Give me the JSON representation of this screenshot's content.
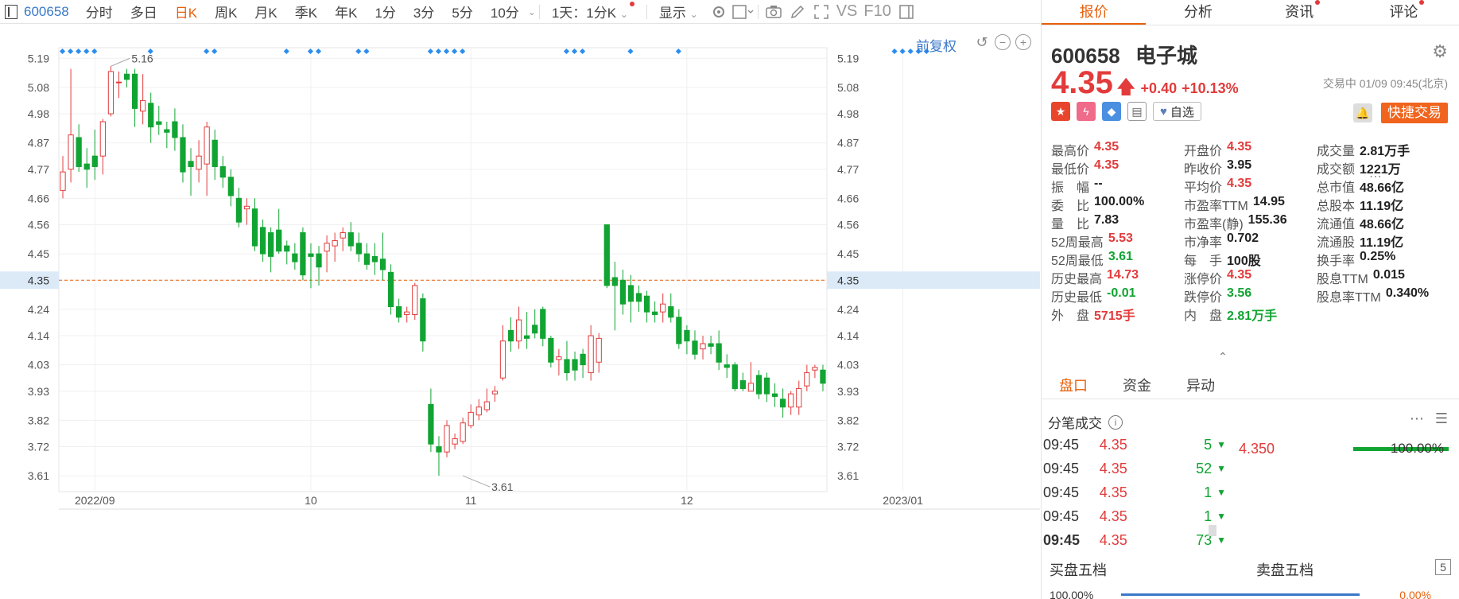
{
  "toolbar": {
    "code": "600658",
    "items": [
      "分时",
      "多日",
      "日K",
      "周K",
      "月K",
      "季K",
      "年K",
      "1分",
      "3分",
      "5分",
      "10分"
    ],
    "active_item": "日K",
    "period_select": "1天：1分K",
    "display_label": "显示",
    "vs_label": "VS",
    "f10_label": "F10"
  },
  "panel": {
    "tabs": [
      "报价",
      "分析",
      "资讯",
      "评论"
    ],
    "code": "600658",
    "name": "电子城",
    "price": "4.35",
    "change": "+0.40",
    "change_pct": "+10.13%",
    "trade_time": "交易中 01/09 09:45(北京)",
    "watch_label": "自选",
    "fast_trade_label": "快捷交易",
    "stats": [
      [
        {
          "k": "最高价",
          "v": "4.35",
          "c": "up"
        },
        {
          "k": "开盘价",
          "v": "4.35",
          "c": "up"
        },
        {
          "k": "成交量",
          "v": "2.81万手",
          "c": ""
        }
      ],
      [
        {
          "k": "最低价",
          "v": "4.35",
          "c": "up"
        },
        {
          "k": "昨收价",
          "v": "3.95",
          "c": ""
        },
        {
          "k": "成交额",
          "v": "1221万",
          "c": ""
        }
      ],
      [
        {
          "k": "振　幅",
          "v": "--",
          "c": ""
        },
        {
          "k": "平均价",
          "v": "4.35",
          "c": "up"
        },
        {
          "k": "总市值",
          "v": "48.66亿",
          "c": ""
        }
      ],
      [
        {
          "k": "委　比",
          "v": "100.00%",
          "c": ""
        },
        {
          "k": "市盈率TTM",
          "v": "14.95",
          "c": ""
        },
        {
          "k": "总股本",
          "v": "11.19亿",
          "c": ""
        }
      ],
      [
        {
          "k": "量　比",
          "v": "7.83",
          "c": ""
        },
        {
          "k": "市盈率(静)",
          "v": "155.36",
          "c": ""
        },
        {
          "k": "流通值",
          "v": "48.66亿",
          "c": ""
        }
      ],
      [
        {
          "k": "52周最高",
          "v": "5.53",
          "c": "up"
        },
        {
          "k": "市净率",
          "v": "0.702",
          "c": ""
        },
        {
          "k": "流通股",
          "v": "11.19亿",
          "c": ""
        }
      ],
      [
        {
          "k": "52周最低",
          "v": "3.61",
          "c": "dn"
        },
        {
          "k": "每　手",
          "v": "100股",
          "c": ""
        },
        {
          "k": "换手率",
          "v": "0.25%",
          "c": ""
        }
      ],
      [
        {
          "k": "历史最高",
          "v": "14.73",
          "c": "up"
        },
        {
          "k": "涨停价",
          "v": "4.35",
          "c": "up"
        },
        {
          "k": "股息TTM",
          "v": "0.015",
          "c": ""
        }
      ],
      [
        {
          "k": "历史最低",
          "v": "-0.01",
          "c": "dn"
        },
        {
          "k": "跌停价",
          "v": "3.56",
          "c": "dn"
        },
        {
          "k": "股息率TTM",
          "v": "0.340%",
          "c": ""
        }
      ],
      [
        {
          "k": "外　盘",
          "v": "5715手",
          "c": "up"
        },
        {
          "k": "内　盘",
          "v": "2.81万手",
          "c": "dn"
        }
      ]
    ],
    "subtabs": [
      "盘口",
      "资金",
      "异动"
    ],
    "ticks_title": "分笔成交",
    "ticks": [
      {
        "t": "09:45",
        "p": "4.35",
        "v": "5"
      },
      {
        "t": "09:45",
        "p": "4.35",
        "v": "52"
      },
      {
        "t": "09:45",
        "p": "4.35",
        "v": "1"
      },
      {
        "t": "09:45",
        "p": "4.35",
        "v": "1"
      },
      {
        "t": "09:45",
        "p": "4.35",
        "v": "73"
      }
    ],
    "mini_price": "4.350",
    "mini_pct": "100.00%",
    "book_bid_label": "买盘五档",
    "book_ask_label": "卖盘五档",
    "book_levels": "5",
    "book_bid_pct": "100.00%",
    "book_ask_pct": "0.00%"
  },
  "chart_data": {
    "type": "candlestick",
    "fuquan_label": "前复权",
    "y_ticks": [
      5.19,
      5.08,
      4.98,
      4.87,
      4.77,
      4.66,
      4.56,
      4.45,
      4.35,
      4.24,
      4.14,
      4.03,
      3.93,
      3.82,
      3.72,
      3.61
    ],
    "y_tick_labels": [
      "5.19",
      "5.08",
      "4.98",
      "4.87",
      "4.77",
      "4.66",
      "4.56",
      "4.45",
      "4.35",
      "4.24",
      "4.14",
      "4.03",
      "3.93",
      "3.82",
      "3.72",
      "3.61"
    ],
    "ylim": [
      3.55,
      5.23
    ],
    "x_labels": [
      {
        "i": 4,
        "label": "2022/09"
      },
      {
        "i": 31,
        "label": "10"
      },
      {
        "i": 51,
        "label": "11"
      },
      {
        "i": 78,
        "label": "12"
      },
      {
        "i": 105,
        "label": "2023/01"
      }
    ],
    "current_price": 4.35,
    "current_price_label": "4.35",
    "annotations": [
      {
        "i": 6,
        "value": 5.16,
        "label": "5.16"
      },
      {
        "i": 50,
        "value": 3.61,
        "label": "3.61"
      }
    ],
    "marker_index": [
      0,
      1,
      2,
      3,
      4,
      11,
      18,
      19,
      28,
      31,
      32,
      37,
      38,
      46,
      47,
      48,
      49,
      50,
      63,
      64,
      65,
      71,
      77,
      104,
      105,
      106,
      107,
      108
    ],
    "ohlc": [
      [
        4.69,
        4.76,
        4.82,
        4.66
      ],
      [
        4.77,
        4.9,
        5.15,
        4.72
      ],
      [
        4.89,
        4.78,
        4.94,
        4.76
      ],
      [
        4.79,
        4.77,
        4.85,
        4.7
      ],
      [
        4.82,
        4.78,
        4.92,
        4.73
      ],
      [
        4.82,
        4.95,
        4.96,
        4.75
      ],
      [
        4.98,
        5.14,
        5.16,
        4.97
      ],
      [
        5.1,
        5.1,
        5.14,
        5.04
      ],
      [
        5.13,
        5.11,
        5.15,
        5.08
      ],
      [
        5.13,
        5.0,
        5.15,
        4.93
      ],
      [
        4.99,
        5.03,
        5.13,
        4.94
      ],
      [
        5.02,
        4.93,
        5.06,
        4.87
      ],
      [
        4.95,
        4.94,
        5.01,
        4.9
      ],
      [
        4.92,
        4.91,
        4.95,
        4.85
      ],
      [
        4.95,
        4.89,
        5.0,
        4.84
      ],
      [
        4.89,
        4.76,
        4.94,
        4.72
      ],
      [
        4.8,
        4.78,
        4.85,
        4.67
      ],
      [
        4.77,
        4.82,
        4.88,
        4.72
      ],
      [
        4.79,
        4.93,
        4.95,
        4.67
      ],
      [
        4.88,
        4.78,
        4.92,
        4.73
      ],
      [
        4.78,
        4.74,
        4.82,
        4.7
      ],
      [
        4.74,
        4.67,
        4.77,
        4.63
      ],
      [
        4.66,
        4.57,
        4.7,
        4.55
      ],
      [
        4.62,
        4.63,
        4.66,
        4.56
      ],
      [
        4.62,
        4.48,
        4.66,
        4.46
      ],
      [
        4.55,
        4.45,
        4.58,
        4.42
      ],
      [
        4.53,
        4.44,
        4.55,
        4.38
      ],
      [
        4.54,
        4.46,
        4.62,
        4.45
      ],
      [
        4.48,
        4.46,
        4.5,
        4.41
      ],
      [
        4.45,
        4.42,
        4.49,
        4.39
      ],
      [
        4.53,
        4.37,
        4.55,
        4.35
      ],
      [
        4.45,
        4.44,
        4.49,
        4.32
      ],
      [
        4.45,
        4.4,
        4.48,
        4.33
      ],
      [
        4.46,
        4.49,
        4.52,
        4.38
      ],
      [
        4.48,
        4.5,
        4.53,
        4.42
      ],
      [
        4.51,
        4.53,
        4.55,
        4.46
      ],
      [
        4.53,
        4.48,
        4.57,
        4.46
      ],
      [
        4.49,
        4.45,
        4.53,
        4.42
      ],
      [
        4.45,
        4.41,
        4.49,
        4.39
      ],
      [
        4.44,
        4.42,
        4.49,
        4.37
      ],
      [
        4.43,
        4.39,
        4.53,
        4.35
      ],
      [
        4.38,
        4.25,
        4.41,
        4.22
      ],
      [
        4.25,
        4.21,
        4.28,
        4.19
      ],
      [
        4.22,
        4.23,
        4.25,
        4.19
      ],
      [
        4.22,
        4.33,
        4.34,
        4.2
      ],
      [
        4.28,
        4.12,
        4.3,
        4.08
      ],
      [
        3.88,
        3.73,
        3.94,
        3.7
      ],
      [
        3.72,
        3.7,
        3.76,
        3.61
      ],
      [
        3.7,
        3.8,
        3.82,
        3.68
      ],
      [
        3.73,
        3.75,
        3.77,
        3.71
      ],
      [
        3.74,
        3.81,
        3.83,
        3.73
      ],
      [
        3.8,
        3.85,
        3.88,
        3.79
      ],
      [
        3.84,
        3.87,
        3.9,
        3.82
      ],
      [
        3.86,
        3.89,
        3.94,
        3.85
      ],
      [
        3.92,
        3.93,
        3.95,
        3.89
      ],
      [
        3.98,
        4.12,
        4.18,
        3.97
      ],
      [
        4.16,
        4.12,
        4.21,
        4.08
      ],
      [
        4.12,
        4.2,
        4.25,
        4.09
      ],
      [
        4.14,
        4.13,
        4.23,
        4.09
      ],
      [
        4.18,
        4.15,
        4.24,
        4.13
      ],
      [
        4.24,
        4.13,
        4.25,
        4.1
      ],
      [
        4.13,
        4.04,
        4.14,
        4.02
      ],
      [
        4.05,
        4.06,
        4.09,
        3.99
      ],
      [
        4.05,
        4.0,
        4.12,
        3.97
      ],
      [
        4.05,
        4.01,
        4.08,
        3.97
      ],
      [
        4.07,
        4.03,
        4.09,
        3.98
      ],
      [
        4.0,
        4.14,
        4.18,
        3.97
      ],
      [
        4.04,
        4.13,
        4.15,
        4.0
      ],
      [
        4.56,
        4.33,
        4.56,
        4.32
      ],
      [
        4.36,
        4.33,
        4.42,
        4.16
      ],
      [
        4.35,
        4.26,
        4.39,
        4.22
      ],
      [
        4.33,
        4.27,
        4.37,
        4.19
      ],
      [
        4.3,
        4.27,
        4.33,
        4.23
      ],
      [
        4.29,
        4.23,
        4.31,
        4.19
      ],
      [
        4.23,
        4.22,
        4.27,
        4.19
      ],
      [
        4.23,
        4.26,
        4.3,
        4.19
      ],
      [
        4.25,
        4.21,
        4.3,
        4.19
      ],
      [
        4.21,
        4.11,
        4.24,
        4.09
      ],
      [
        4.16,
        4.12,
        4.18,
        4.07
      ],
      [
        4.12,
        4.07,
        4.16,
        4.05
      ],
      [
        4.09,
        4.11,
        4.14,
        4.05
      ],
      [
        4.11,
        4.1,
        4.14,
        4.07
      ],
      [
        4.11,
        4.04,
        4.16,
        4.01
      ],
      [
        4.03,
        4.02,
        4.07,
        3.98
      ],
      [
        4.03,
        3.94,
        4.04,
        3.93
      ],
      [
        3.97,
        3.94,
        4.0,
        3.93
      ],
      [
        3.93,
        3.96,
        4.04,
        3.93
      ],
      [
        3.99,
        3.92,
        4.01,
        3.9
      ],
      [
        3.98,
        3.92,
        4.0,
        3.89
      ],
      [
        3.92,
        3.91,
        3.96,
        3.87
      ],
      [
        3.9,
        3.87,
        3.94,
        3.83
      ],
      [
        3.87,
        3.92,
        3.93,
        3.84
      ],
      [
        3.87,
        3.94,
        3.97,
        3.84
      ],
      [
        3.95,
        4.0,
        4.03,
        3.93
      ],
      [
        4.01,
        4.02,
        4.03,
        3.98
      ],
      [
        4.01,
        3.96,
        4.03,
        3.93
      ]
    ]
  }
}
